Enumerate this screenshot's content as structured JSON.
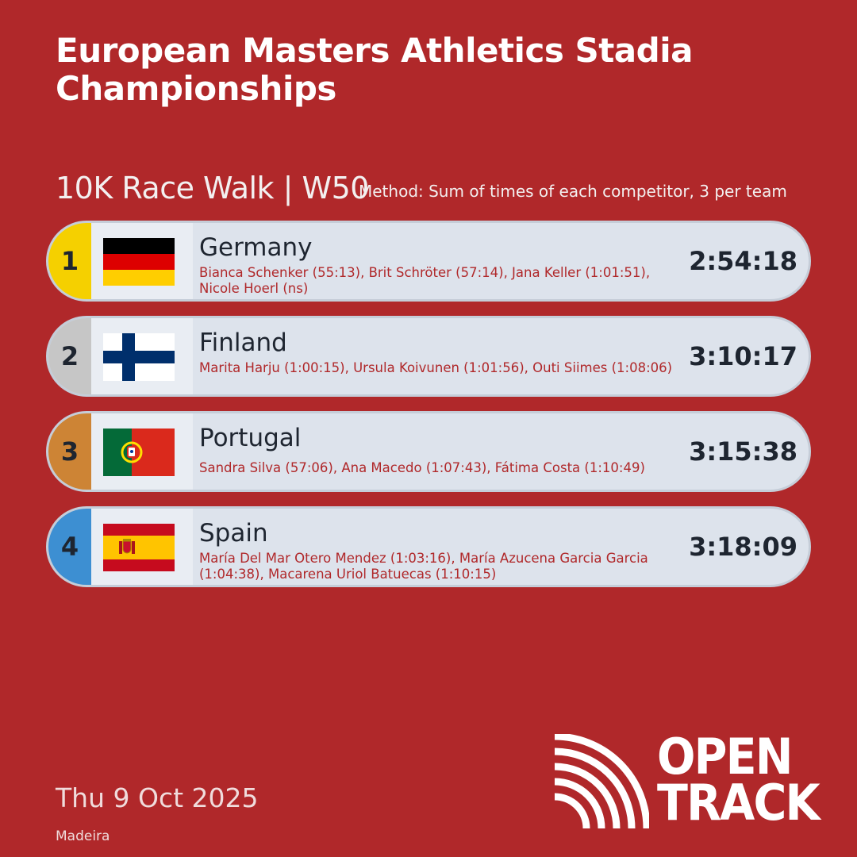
{
  "header": {
    "title": "European Masters Athletics Stadia Championships",
    "event": "10K Race Walk | W50",
    "method": "Method: Sum of times of each competitor, 3 per team"
  },
  "results": [
    {
      "position": "1",
      "position_color": "#f5d000",
      "country": "Germany",
      "flag_icon": "germany-flag-icon",
      "members": "Bianca Schenker (55:13), Brit Schröter (57:14), Jana Keller (1:01:51), Nicole Hoerl (ns)",
      "time": "2:54:18"
    },
    {
      "position": "2",
      "position_color": "#c6c6c6",
      "country": "Finland",
      "flag_icon": "finland-flag-icon",
      "members": "Marita Harju (1:00:15), Ursula Koivunen (1:01:56), Outi Siimes (1:08:06)",
      "time": "3:10:17"
    },
    {
      "position": "3",
      "position_color": "#cd8435",
      "country": "Portugal",
      "flag_icon": "portugal-flag-icon",
      "members": "Sandra Silva (57:06), Ana Macedo (1:07:43), Fátima Costa (1:10:49)",
      "time": "3:15:38"
    },
    {
      "position": "4",
      "position_color": "#3d8fd2",
      "country": "Spain",
      "flag_icon": "spain-flag-icon",
      "members": "María Del Mar Otero Mendez (1:03:16), María Azucena Garcia Garcia (1:04:38), Macarena Uriol Batuecas (1:10:15)",
      "time": "3:18:09"
    }
  ],
  "footer": {
    "date": "Thu 9 Oct 2025",
    "venue": "Madeira",
    "logo_line1": "OPEN",
    "logo_line2": "TRACK",
    "logo_icon": "opentrack-logo-icon"
  },
  "colors": {
    "background": "#b0282a",
    "row_background": "#dde3ec",
    "member_text": "#b0282a"
  }
}
